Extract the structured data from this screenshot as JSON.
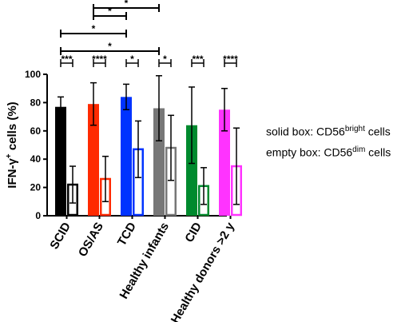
{
  "chart_data": {
    "type": "bar",
    "ylabel_main": "IFN-γ",
    "ylabel_sup": "+",
    "ylabel_rest": " cells (%)",
    "ylim": [
      0,
      100
    ],
    "yticks": [
      "0",
      "20",
      "40",
      "60",
      "80",
      "100"
    ],
    "categories": [
      "SCID",
      "OS/AS",
      "TCD",
      "Healthy infants",
      "CID",
      "Healthy donors >2 y"
    ],
    "colors": [
      "#000000",
      "#ff2a00",
      "#0033ff",
      "#777777",
      "#008a2e",
      "#ff33ff"
    ],
    "series": [
      {
        "name": "solid box: CD56bright cells",
        "fill": "solid",
        "values": [
          77,
          79,
          84,
          76,
          64,
          75
        ],
        "err": [
          7,
          15,
          9,
          23,
          27,
          15
        ]
      },
      {
        "name": "empty box: CD56dim cells",
        "fill": "empty",
        "values": [
          22,
          26,
          47,
          48,
          21,
          35
        ],
        "err": [
          13,
          16,
          20,
          23,
          13,
          27
        ]
      }
    ],
    "pair_significance": [
      "***",
      "****",
      "*",
      "*",
      "***",
      "****"
    ],
    "cross_significance": [
      {
        "from": 0,
        "to": 3,
        "label": "*"
      },
      {
        "from": 0,
        "to": 2,
        "label": "*"
      },
      {
        "from": 1,
        "to": 3,
        "label": "*"
      },
      {
        "from": 1,
        "to": 2,
        "label": "*"
      }
    ]
  },
  "legend": {
    "solid_prefix": "solid box: CD56",
    "solid_sup": "bright",
    "solid_suffix": " cells",
    "empty_prefix": "empty box: CD56",
    "empty_sup": "dim",
    "empty_suffix": " cells"
  }
}
